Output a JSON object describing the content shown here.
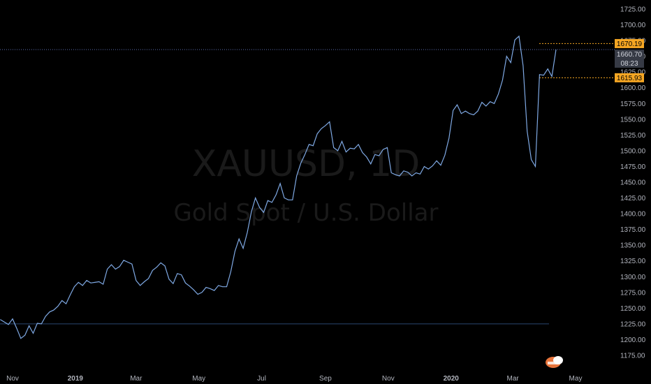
{
  "watermark": {
    "symbol": "XAUUSD, 1D",
    "name": "Gold Spot / U.S. Dollar"
  },
  "colors": {
    "background": "#000000",
    "line": "#7fa9e4",
    "baseline": "#2a4670",
    "marker": "#f5a623",
    "axis_text": "#b2b5be",
    "current_badge": "#363a45"
  },
  "badges": {
    "upper": "1670.19",
    "current_price": "1660.70",
    "countdown": "08:23",
    "lower": "1615.93"
  },
  "icons": {
    "corner_badge": "tradingview-logo-icon"
  },
  "chart_data": {
    "type": "line",
    "title": "",
    "xlabel": "",
    "ylabel": "",
    "ylim": [
      1160,
      1740
    ],
    "grid": false,
    "y_ticks": [
      1175,
      1200,
      1225,
      1250,
      1275,
      1300,
      1325,
      1350,
      1375,
      1400,
      1425,
      1450,
      1475,
      1500,
      1525,
      1550,
      1575,
      1600,
      1625,
      1650,
      1675,
      1700,
      1725
    ],
    "x_ticks": [
      "Nov",
      "2019",
      "Mar",
      "May",
      "Jul",
      "Sep",
      "Nov",
      "2020",
      "Mar",
      "May"
    ],
    "x_tick_dates": [
      "2018-11-01",
      "2019-01-01",
      "2019-03-01",
      "2019-05-01",
      "2019-07-01",
      "2019-09-01",
      "2019-11-01",
      "2020-01-01",
      "2020-03-01",
      "2020-05-01"
    ],
    "baseline_value": 1225,
    "horizontal_markers": [
      1670.19,
      1615.93
    ],
    "current_value": 1660.7,
    "series": [
      {
        "x": [
          "2018-10-20",
          "2018-10-24",
          "2018-10-28",
          "2018-11-01",
          "2018-11-05",
          "2018-11-09",
          "2018-11-13",
          "2018-11-17",
          "2018-11-21",
          "2018-11-25",
          "2018-11-29",
          "2018-12-03",
          "2018-12-07",
          "2018-12-11",
          "2018-12-15",
          "2018-12-19",
          "2018-12-23",
          "2018-12-27",
          "2018-12-31",
          "2019-01-04",
          "2019-01-08",
          "2019-01-12",
          "2019-01-16",
          "2019-01-20",
          "2019-01-24",
          "2019-01-28",
          "2019-02-01",
          "2019-02-05",
          "2019-02-09",
          "2019-02-13",
          "2019-02-17",
          "2019-02-21",
          "2019-02-25",
          "2019-03-01",
          "2019-03-05",
          "2019-03-09",
          "2019-03-13",
          "2019-03-17",
          "2019-03-21",
          "2019-03-25",
          "2019-03-29",
          "2019-04-02",
          "2019-04-06",
          "2019-04-10",
          "2019-04-14",
          "2019-04-18",
          "2019-04-22",
          "2019-04-26",
          "2019-04-30",
          "2019-05-04",
          "2019-05-08",
          "2019-05-12",
          "2019-05-16",
          "2019-05-20",
          "2019-05-24",
          "2019-05-28",
          "2019-06-01",
          "2019-06-05",
          "2019-06-09",
          "2019-06-13",
          "2019-06-17",
          "2019-06-21",
          "2019-06-25",
          "2019-06-29",
          "2019-07-03",
          "2019-07-07",
          "2019-07-11",
          "2019-07-15",
          "2019-07-19",
          "2019-07-23",
          "2019-07-27",
          "2019-07-31",
          "2019-08-04",
          "2019-08-08",
          "2019-08-12",
          "2019-08-16",
          "2019-08-20",
          "2019-08-24",
          "2019-08-28",
          "2019-09-01",
          "2019-09-05",
          "2019-09-09",
          "2019-09-13",
          "2019-09-17",
          "2019-09-21",
          "2019-09-25",
          "2019-09-29",
          "2019-10-03",
          "2019-10-07",
          "2019-10-11",
          "2019-10-15",
          "2019-10-19",
          "2019-10-23",
          "2019-10-27",
          "2019-10-31",
          "2019-11-04",
          "2019-11-08",
          "2019-11-12",
          "2019-11-16",
          "2019-11-20",
          "2019-11-24",
          "2019-11-28",
          "2019-12-02",
          "2019-12-06",
          "2019-12-10",
          "2019-12-14",
          "2019-12-18",
          "2019-12-22",
          "2019-12-26",
          "2019-12-30",
          "2020-01-03",
          "2020-01-07",
          "2020-01-11",
          "2020-01-15",
          "2020-01-19",
          "2020-01-23",
          "2020-01-27",
          "2020-01-31",
          "2020-02-04",
          "2020-02-08",
          "2020-02-12",
          "2020-02-16",
          "2020-02-20",
          "2020-02-24",
          "2020-02-28",
          "2020-03-03",
          "2020-03-07",
          "2020-03-11",
          "2020-03-15",
          "2020-03-19",
          "2020-03-23",
          "2020-03-27",
          "2020-03-31",
          "2020-04-04",
          "2020-04-08",
          "2020-04-12"
        ],
        "values": [
          1232,
          1228,
          1224,
          1233,
          1218,
          1202,
          1207,
          1222,
          1210,
          1226,
          1225,
          1237,
          1244,
          1247,
          1253,
          1262,
          1257,
          1271,
          1284,
          1291,
          1286,
          1294,
          1290,
          1291,
          1292,
          1288,
          1312,
          1319,
          1312,
          1316,
          1326,
          1323,
          1320,
          1294,
          1286,
          1292,
          1297,
          1310,
          1315,
          1322,
          1317,
          1296,
          1289,
          1305,
          1303,
          1290,
          1285,
          1279,
          1272,
          1275,
          1283,
          1281,
          1278,
          1286,
          1284,
          1284,
          1308,
          1340,
          1360,
          1345,
          1370,
          1403,
          1425,
          1410,
          1402,
          1421,
          1418,
          1430,
          1448,
          1425,
          1422,
          1422,
          1460,
          1480,
          1494,
          1510,
          1508,
          1527,
          1535,
          1540,
          1546,
          1505,
          1500,
          1515,
          1498,
          1504,
          1503,
          1510,
          1497,
          1490,
          1479,
          1494,
          1492,
          1502,
          1505,
          1465,
          1462,
          1460,
          1468,
          1466,
          1460,
          1465,
          1463,
          1475,
          1471,
          1476,
          1484,
          1477,
          1493,
          1520,
          1564,
          1573,
          1559,
          1563,
          1559,
          1557,
          1563,
          1577,
          1571,
          1578,
          1575,
          1590,
          1612,
          1650,
          1640,
          1676,
          1682,
          1635,
          1531,
          1486,
          1475,
          1621,
          1620,
          1630,
          1618,
          1660.7
        ]
      }
    ]
  }
}
